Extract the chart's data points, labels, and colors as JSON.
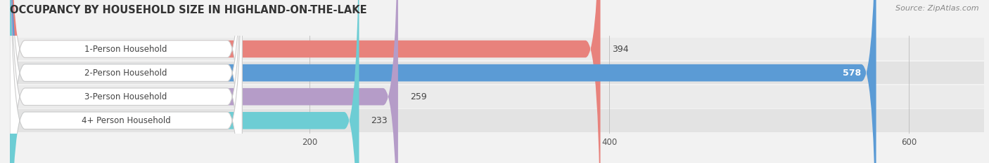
{
  "categories": [
    "1-Person Household",
    "2-Person Household",
    "3-Person Household",
    "4+ Person Household"
  ],
  "values": [
    394,
    578,
    259,
    233
  ],
  "bar_colors": [
    "#e8827c",
    "#5b9bd5",
    "#b59cc8",
    "#6dcdd4"
  ],
  "title": "OCCUPANCY BY HOUSEHOLD SIZE IN HIGHLAND-ON-THE-LAKE",
  "source": "Source: ZipAtlas.com",
  "xlim": [
    0,
    650
  ],
  "xticks": [
    200,
    400,
    600
  ],
  "title_fontsize": 10.5,
  "label_fontsize": 8.5,
  "value_fontsize": 9,
  "source_fontsize": 8,
  "row_bg_colors": [
    "#f0f0f0",
    "#e8e8e8"
  ],
  "background_color": "#f2f2f2"
}
